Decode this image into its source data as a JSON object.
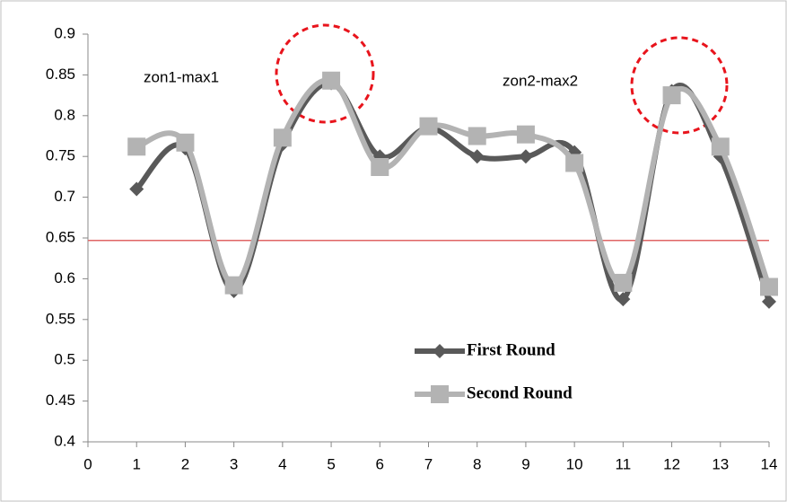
{
  "chart_data": {
    "type": "line",
    "x": [
      1,
      2,
      3,
      4,
      5,
      6,
      7,
      8,
      9,
      10,
      11,
      12,
      13,
      14
    ],
    "series": [
      {
        "name": "First Round",
        "color": "#595959",
        "marker": "diamond",
        "values": [
          0.71,
          0.76,
          0.585,
          0.765,
          0.84,
          0.75,
          0.785,
          0.75,
          0.75,
          0.755,
          0.575,
          0.83,
          0.75,
          0.572
        ]
      },
      {
        "name": "Second Round",
        "color": "#b3b3b3",
        "marker": "square",
        "values": [
          0.762,
          0.767,
          0.592,
          0.773,
          0.843,
          0.737,
          0.787,
          0.775,
          0.777,
          0.742,
          0.595,
          0.825,
          0.762,
          0.59
        ]
      }
    ],
    "reference_line": {
      "value": 0.647,
      "color": "#e06666"
    },
    "annotations": [
      "zon1-max1",
      "zon2-max2"
    ],
    "xlim": [
      0,
      14
    ],
    "xticks": [
      0,
      1,
      2,
      3,
      4,
      5,
      6,
      7,
      8,
      9,
      10,
      11,
      12,
      13,
      14
    ],
    "ylim": [
      0.4,
      0.9
    ],
    "yticks": [
      0.4,
      0.45,
      0.5,
      0.55,
      0.6,
      0.65,
      0.7,
      0.75,
      0.8,
      0.85,
      0.9
    ],
    "grid": false
  }
}
